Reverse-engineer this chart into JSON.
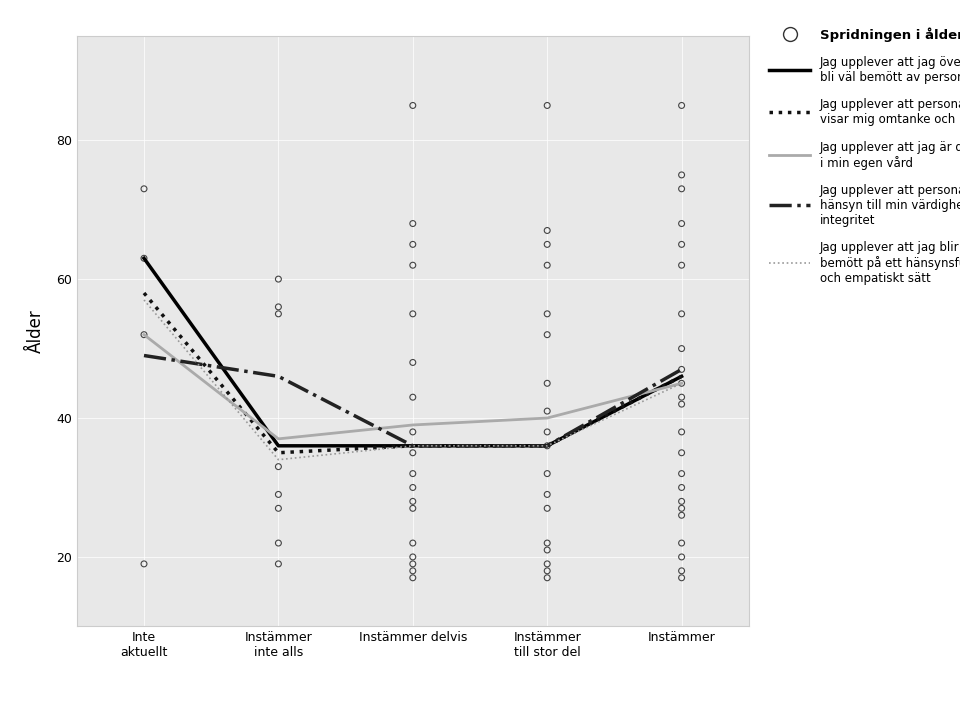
{
  "xlabel_ticks": [
    "Inte\naktuellt",
    "Instämmer\ninte alls",
    "Instämmer delvis",
    "Instämmer\ntill stor del",
    "Instämmer"
  ],
  "xtick_positions": [
    0,
    1,
    2,
    3,
    4
  ],
  "ylabel": "Ålder",
  "ylim": [
    10,
    95
  ],
  "yticks": [
    20,
    40,
    60,
    80
  ],
  "background_color": "#e8e8e8",
  "lines": [
    {
      "color": "#000000",
      "linestyle": "-",
      "linewidth": 2.5,
      "values": [
        63,
        36,
        36,
        36,
        46
      ]
    },
    {
      "color": "#111111",
      "linestyle": ":",
      "linewidth": 2.5,
      "values": [
        58,
        35,
        36,
        36,
        46
      ]
    },
    {
      "color": "#aaaaaa",
      "linestyle": "-",
      "linewidth": 2.0,
      "values": [
        52,
        37,
        39,
        40,
        45
      ]
    },
    {
      "color": "#222222",
      "linestyle": "-.",
      "linewidth": 2.5,
      "values": [
        49,
        46,
        36,
        36,
        47
      ]
    },
    {
      "color": "#999999",
      "linestyle": ":",
      "linewidth": 1.2,
      "values": [
        57,
        34,
        36,
        36,
        45
      ]
    }
  ],
  "scatter_x": [
    [
      0,
      0,
      0,
      0
    ],
    [
      1,
      1,
      1,
      1,
      1,
      1,
      1,
      1
    ],
    [
      2,
      2,
      2,
      2,
      2,
      2,
      2,
      2,
      2,
      2,
      2,
      2,
      2,
      2,
      2,
      2,
      2,
      2
    ],
    [
      3,
      3,
      3,
      3,
      3,
      3,
      3,
      3,
      3,
      3,
      3,
      3,
      3,
      3,
      3,
      3,
      3,
      3
    ],
    [
      4,
      4,
      4,
      4,
      4,
      4,
      4,
      4,
      4,
      4,
      4,
      4,
      4,
      4,
      4,
      4,
      4,
      4,
      4,
      4,
      4,
      4,
      4
    ]
  ],
  "scatter_y": [
    [
      19,
      52,
      63,
      73
    ],
    [
      19,
      22,
      27,
      29,
      33,
      55,
      56,
      60
    ],
    [
      17,
      18,
      19,
      20,
      22,
      27,
      28,
      30,
      32,
      35,
      38,
      43,
      48,
      55,
      62,
      65,
      68,
      85
    ],
    [
      17,
      18,
      19,
      21,
      22,
      27,
      29,
      32,
      36,
      38,
      41,
      45,
      52,
      55,
      62,
      65,
      67,
      85
    ],
    [
      17,
      18,
      20,
      22,
      26,
      27,
      28,
      30,
      32,
      35,
      38,
      42,
      43,
      45,
      47,
      50,
      55,
      62,
      65,
      68,
      73,
      75,
      85
    ]
  ],
  "legend_scatter_label": "Spridningen i ålder",
  "legend_line_labels": [
    "Jag upplever att jag överlag\nbli väl bemött av personalen",
    "Jag upplever att personalen\nvisar mig omtanke och respekt",
    "Jag upplever att jag är delaktig\ni min egen vård",
    "Jag upplever att personalen visar\nhänsyn till min värdighet och\nintegritet",
    "Jag upplever att jag blir\nbemött på ett hänsynsfullt\noch empatiskt sätt"
  ]
}
